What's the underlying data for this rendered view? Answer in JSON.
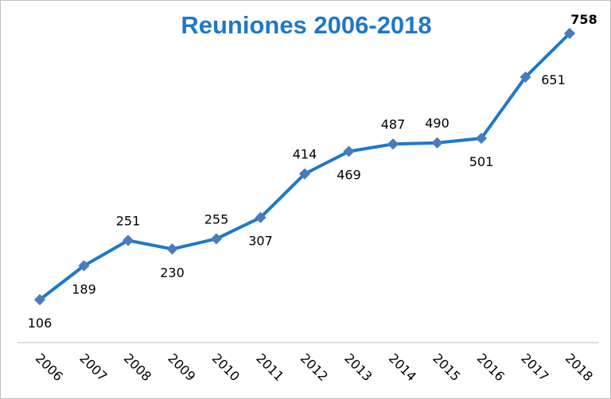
{
  "chart_data": {
    "type": "line",
    "title": "Reuniones 2006-2018",
    "xlabel": "",
    "ylabel": "",
    "categories": [
      "2006",
      "2007",
      "2008",
      "2009",
      "2010",
      "2011",
      "2012",
      "2013",
      "2014",
      "2015",
      "2016",
      "2017",
      "2018"
    ],
    "values": [
      106,
      189,
      251,
      230,
      255,
      307,
      414,
      469,
      487,
      490,
      501,
      651,
      758
    ],
    "ylim": [
      0,
      800
    ],
    "grid": false,
    "legend": "none",
    "line_color": "#1f78c8",
    "marker_color": "#4a7bbf",
    "highlight_last_label": true
  }
}
